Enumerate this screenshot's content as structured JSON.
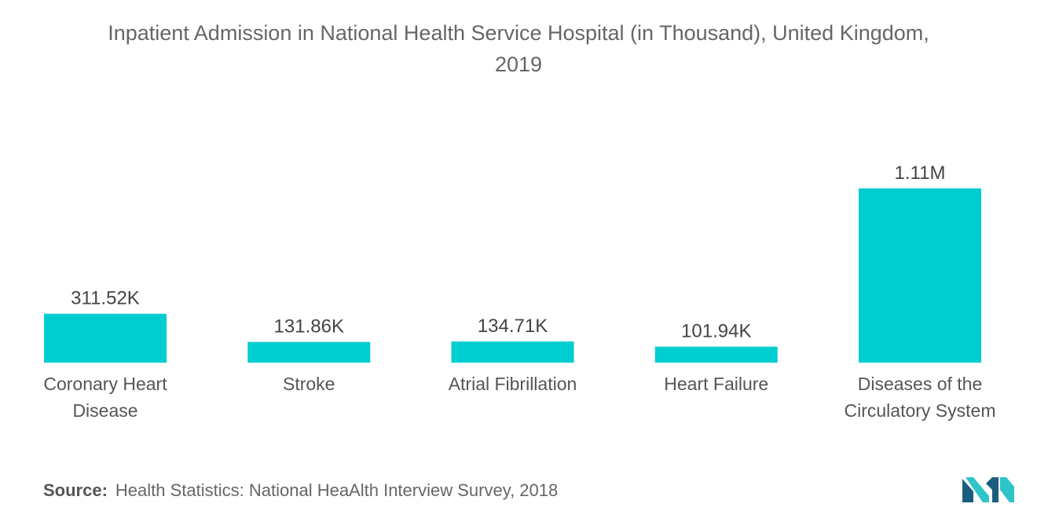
{
  "title_line1": "Inpatient Admission in National Health Service Hospital (in Thousand), United Kingdom,",
  "title_line2": "2019",
  "source": {
    "label": "Source:",
    "text": "Health Statistics: National HeaAlth Interview Survey, 2018"
  },
  "colors": {
    "bar": "#00CDD0",
    "label_text": "#444444",
    "category_text": "#555555",
    "logo_dark": "#1C5C80",
    "logo_light": "#2EC4C9"
  },
  "chart_data": {
    "type": "bar",
    "title": "Inpatient Admission in National Health Service Hospital (in Thousand), United Kingdom, 2019",
    "categories": [
      [
        "Coronary Heart",
        "Disease"
      ],
      [
        "Stroke"
      ],
      [
        "Atrial Fibrillation"
      ],
      [
        "Heart Failure"
      ],
      [
        "Diseases of the",
        "Circulatory System"
      ]
    ],
    "values": [
      311.52,
      131.86,
      134.71,
      101.94,
      1110
    ],
    "data_labels": [
      "311.52K",
      "131.86K",
      "134.71K",
      "101.94K",
      "1.11M"
    ],
    "xlabel": "",
    "ylabel": "",
    "ylim": [
      0,
      1110
    ],
    "grid": false,
    "legend": "none"
  }
}
